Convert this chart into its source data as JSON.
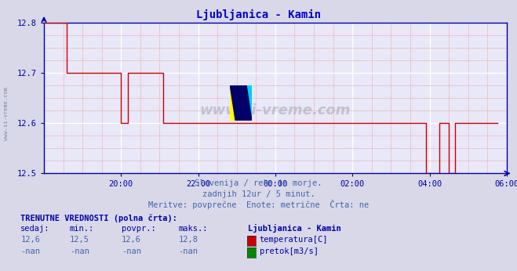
{
  "title": "Ljubljanica - Kamin",
  "subtitle1": "Slovenija / reke in morje.",
  "subtitle2": "zadnjih 12ur / 5 minut.",
  "subtitle3": "Meritve: povprečne  Enote: metrične  Črta: ne",
  "info_header": "TRENUTNE VREDNOSTI (polna črta):",
  "col_headers": [
    "sedaj:",
    "min.:",
    "povpr.:",
    "maks.:",
    "Ljubljanica - Kamin"
  ],
  "row1": [
    "12,6",
    "12,5",
    "12,6",
    "12,8",
    "temperatura[C]"
  ],
  "row2": [
    "-nan",
    "-nan",
    "-nan",
    "-nan",
    "pretok[m3/s]"
  ],
  "temp_color": "#cc0000",
  "pretok_color": "#008800",
  "line_color": "#cc0000",
  "bg_color": "#d8d8e8",
  "plot_bg": "#e8e8f8",
  "grid_color_major": "#ffffff",
  "grid_color_minor": "#f0b8b8",
  "axis_color": "#0000aa",
  "title_color": "#0000cc",
  "text_color": "#4466aa",
  "watermark": "www.si-vreme.com",
  "ylim": [
    12.5,
    12.8
  ],
  "yticks": [
    12.5,
    12.6,
    12.7,
    12.8
  ],
  "xtick_labels": [
    "20:00",
    "22:00",
    "00:00",
    "02:00",
    "04:00",
    "06:00"
  ],
  "xtick_positions": [
    24,
    48,
    72,
    96,
    120,
    144
  ],
  "total_points": 145,
  "data_y": [
    12.8,
    12.8,
    12.8,
    12.8,
    12.8,
    12.8,
    12.8,
    12.7,
    12.7,
    12.7,
    12.7,
    12.7,
    12.7,
    12.7,
    12.7,
    12.7,
    12.7,
    12.7,
    12.7,
    12.7,
    12.7,
    12.7,
    12.7,
    12.7,
    12.6,
    12.6,
    12.7,
    12.7,
    12.7,
    12.7,
    12.7,
    12.7,
    12.7,
    12.7,
    12.7,
    12.7,
    12.7,
    12.6,
    12.6,
    12.6,
    12.6,
    12.6,
    12.6,
    12.6,
    12.6,
    12.6,
    12.6,
    12.6,
    12.6,
    12.6,
    12.6,
    12.6,
    12.6,
    12.6,
    12.6,
    12.6,
    12.6,
    12.6,
    12.6,
    12.6,
    12.6,
    12.6,
    12.6,
    12.6,
    12.6,
    12.6,
    12.6,
    12.6,
    12.6,
    12.6,
    12.6,
    12.6,
    12.6,
    12.6,
    12.6,
    12.6,
    12.6,
    12.6,
    12.6,
    12.6,
    12.6,
    12.6,
    12.6,
    12.6,
    12.6,
    12.6,
    12.6,
    12.6,
    12.6,
    12.6,
    12.6,
    12.6,
    12.6,
    12.6,
    12.6,
    12.6,
    12.6,
    12.6,
    12.6,
    12.6,
    12.6,
    12.6,
    12.6,
    12.6,
    12.6,
    12.6,
    12.6,
    12.6,
    12.6,
    12.6,
    12.6,
    12.6,
    12.6,
    12.6,
    12.6,
    12.6,
    12.6,
    12.6,
    12.6,
    12.5,
    12.5,
    12.5,
    12.5,
    12.6,
    12.6,
    12.6,
    12.5,
    12.5,
    12.6,
    12.6,
    12.6,
    12.6,
    12.6,
    12.6,
    12.6,
    12.6,
    12.6,
    12.6,
    12.6,
    12.6,
    12.6,
    12.6
  ]
}
